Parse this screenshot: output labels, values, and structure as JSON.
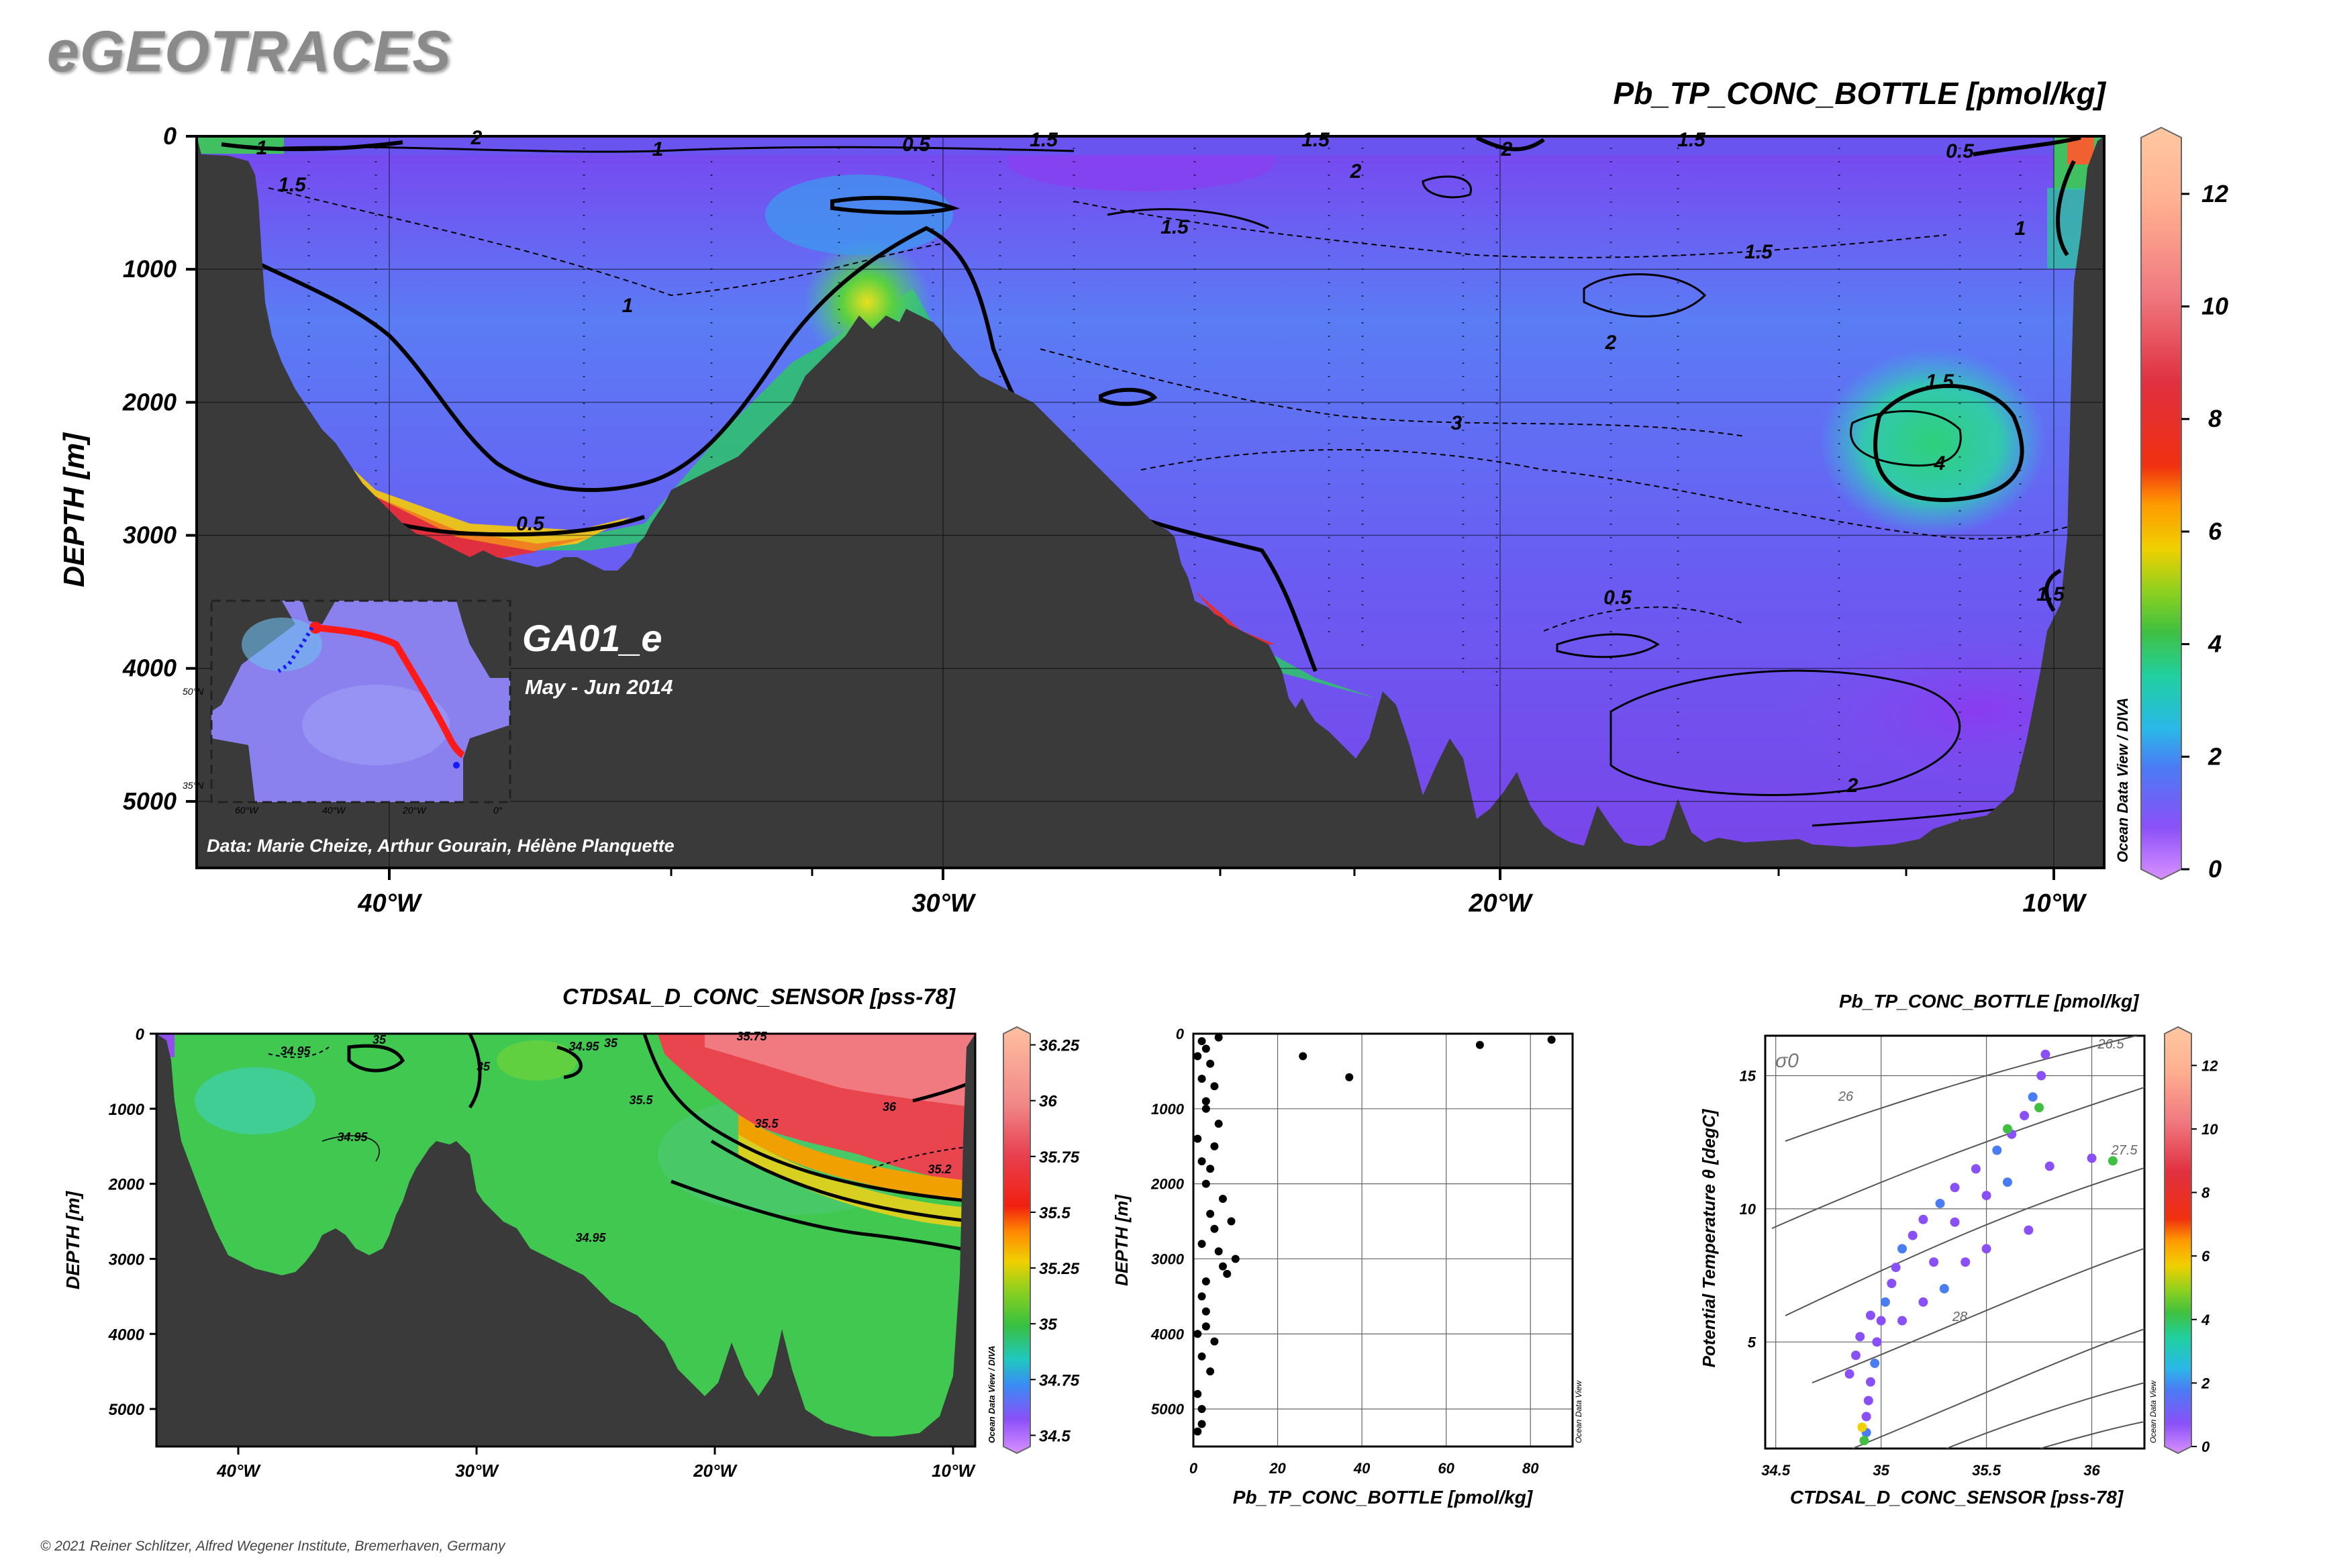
{
  "header": {
    "logo": "eGEOTRACES",
    "copyright": "© 2021 Reiner Schlitzer, Alfred Wegener Institute, Bremerhaven, Germany"
  },
  "inset": {
    "cruise": "GA01_e",
    "date": "May - Jun 2014",
    "credit": "Data: Marie Cheize, Arthur Gourain, Hélène Planquette",
    "lat_labels": [
      "50°N",
      "35°N"
    ],
    "lon_labels": [
      "60°W",
      "40°W",
      "20°W",
      "0°"
    ]
  },
  "colors": {
    "land": "#3a3a3a",
    "track": "#ff1a1a",
    "station_dots": "#1a1aff"
  },
  "chart_data": [
    {
      "id": "main-section",
      "type": "heatmap",
      "title": "Pb_TP_CONC_BOTTLE [pmol/kg]",
      "xlabel": "",
      "ylabel": "DEPTH [m]",
      "xticks": [
        "40°W",
        "30°W",
        "20°W",
        "10°W"
      ],
      "yticks": [
        "0",
        "1000",
        "2000",
        "3000",
        "4000",
        "5000"
      ],
      "ylim": [
        0,
        5500
      ],
      "colorbar": {
        "ticks": [
          "0",
          "2",
          "4",
          "6",
          "8",
          "10",
          "12"
        ],
        "range": [
          0,
          13
        ],
        "credit": "Ocean Data View / DIVA"
      },
      "contour_labels": [
        "1",
        "2",
        "1",
        "0.5",
        "1.5",
        "1.5",
        "2",
        "1.5",
        "0.5",
        "1.5",
        "2",
        "1.5",
        "1.5",
        "1",
        "1",
        "2",
        "1.5",
        "3",
        "4",
        "0.5",
        "0.5",
        "2",
        "1.5"
      ]
    },
    {
      "id": "salinity-section",
      "type": "heatmap",
      "title": "CTDSAL_D_CONC_SENSOR [pss-78]",
      "xlabel": "",
      "ylabel": "DEPTH [m]",
      "xticks": [
        "40°W",
        "30°W",
        "20°W",
        "10°W"
      ],
      "yticks": [
        "0",
        "1000",
        "2000",
        "3000",
        "4000",
        "5000"
      ],
      "ylim": [
        0,
        5500
      ],
      "colorbar": {
        "ticks": [
          "34.5",
          "34.75",
          "35",
          "35.25",
          "35.5",
          "35.75",
          "36",
          "36.25"
        ],
        "range": [
          34.45,
          36.3
        ],
        "credit": "Ocean Data View / DIVA"
      },
      "contour_labels": [
        "34.95",
        "35",
        "34.95",
        "35",
        "35",
        "35.5",
        "36",
        "35.5",
        "34.95",
        "35.2",
        "34.95",
        "35.75"
      ]
    },
    {
      "id": "profile-scatter",
      "type": "scatter",
      "title": "",
      "xlabel": "Pb_TP_CONC_BOTTLE [pmol/kg]",
      "ylabel": "DEPTH [m]",
      "xticks": [
        "0",
        "20",
        "40",
        "60",
        "80"
      ],
      "xlim": [
        0,
        90
      ],
      "yticks": [
        "0",
        "1000",
        "2000",
        "3000",
        "4000",
        "5000"
      ],
      "ylim": [
        0,
        5500
      ],
      "credit": "Ocean Data View",
      "points": [
        [
          26,
          300
        ],
        [
          37,
          580
        ],
        [
          68,
          150
        ],
        [
          85,
          80
        ],
        [
          9,
          2500
        ],
        [
          10,
          3000
        ],
        [
          8,
          3200
        ],
        [
          7,
          3100
        ],
        [
          6,
          2900
        ],
        [
          5,
          2600
        ],
        [
          7,
          2200
        ],
        [
          4,
          1800
        ],
        [
          5,
          1500
        ],
        [
          6,
          1200
        ],
        [
          3,
          1000
        ],
        [
          5,
          700
        ],
        [
          4,
          400
        ],
        [
          3,
          200
        ],
        [
          2,
          100
        ],
        [
          6,
          50
        ],
        [
          1,
          4000
        ],
        [
          2,
          4300
        ],
        [
          3,
          3700
        ],
        [
          1,
          4800
        ],
        [
          2,
          5200
        ],
        [
          4,
          4500
        ],
        [
          3,
          3900
        ],
        [
          5,
          4100
        ],
        [
          2,
          5000
        ],
        [
          1,
          5300
        ],
        [
          2,
          3500
        ],
        [
          3,
          3300
        ],
        [
          2,
          2800
        ],
        [
          4,
          2400
        ],
        [
          3,
          2000
        ],
        [
          2,
          1700
        ],
        [
          1,
          1400
        ],
        [
          3,
          900
        ],
        [
          2,
          600
        ],
        [
          1,
          300
        ]
      ]
    },
    {
      "id": "ts-diagram",
      "type": "scatter",
      "title": "Pb_TP_CONC_BOTTLE [pmol/kg]",
      "xlabel": "CTDSAL_D_CONC_SENSOR [pss-78]",
      "ylabel": "Potential Temperature θ [degC]",
      "xticks": [
        "34.5",
        "35",
        "35.5",
        "36"
      ],
      "xlim": [
        34.45,
        36.25
      ],
      "yticks": [
        "5",
        "10",
        "15"
      ],
      "ylim": [
        1,
        16.5
      ],
      "sigma_label": "σ0",
      "isopycnal_labels": [
        "26.5",
        "26",
        "27.5",
        "28"
      ],
      "colorbar": {
        "ticks": [
          "0",
          "2",
          "4",
          "6",
          "8",
          "10",
          "12"
        ],
        "range": [
          0,
          13
        ],
        "credit": "Ocean Data View"
      },
      "points": [
        [
          34.93,
          1.6,
          2
        ],
        [
          34.93,
          2.2,
          1
        ],
        [
          34.94,
          2.8,
          1
        ],
        [
          34.95,
          3.5,
          1
        ],
        [
          34.97,
          4.2,
          2
        ],
        [
          34.98,
          5.0,
          1
        ],
        [
          35.0,
          5.8,
          1
        ],
        [
          35.02,
          6.5,
          2
        ],
        [
          35.05,
          7.2,
          1
        ],
        [
          35.07,
          7.8,
          1
        ],
        [
          35.1,
          8.5,
          2
        ],
        [
          35.15,
          9.0,
          1
        ],
        [
          35.2,
          9.6,
          1
        ],
        [
          35.28,
          10.2,
          2
        ],
        [
          35.35,
          10.8,
          1
        ],
        [
          35.45,
          11.5,
          1
        ],
        [
          35.55,
          12.2,
          2
        ],
        [
          35.62,
          12.8,
          1
        ],
        [
          35.68,
          13.5,
          1
        ],
        [
          35.72,
          14.2,
          2
        ],
        [
          35.76,
          15.0,
          1
        ],
        [
          35.78,
          15.8,
          1
        ],
        [
          34.95,
          6.0,
          1
        ],
        [
          34.9,
          5.2,
          1
        ],
        [
          34.88,
          4.5,
          1
        ],
        [
          34.85,
          3.8,
          1
        ],
        [
          34.92,
          1.3,
          5
        ],
        [
          34.91,
          1.8,
          6
        ],
        [
          35.5,
          10.5,
          1
        ],
        [
          35.6,
          11.0,
          2
        ],
        [
          35.8,
          11.6,
          1
        ],
        [
          36.0,
          11.9,
          1
        ],
        [
          36.1,
          11.8,
          4
        ],
        [
          35.4,
          8.0,
          1
        ],
        [
          35.3,
          7.0,
          2
        ],
        [
          35.5,
          8.5,
          1
        ],
        [
          35.7,
          9.2,
          1
        ],
        [
          35.2,
          6.5,
          1
        ],
        [
          35.1,
          5.8,
          1
        ],
        [
          35.25,
          8.0,
          1
        ],
        [
          35.35,
          9.5,
          1
        ],
        [
          35.6,
          13.0,
          4
        ],
        [
          35.75,
          13.8,
          4
        ]
      ]
    }
  ]
}
